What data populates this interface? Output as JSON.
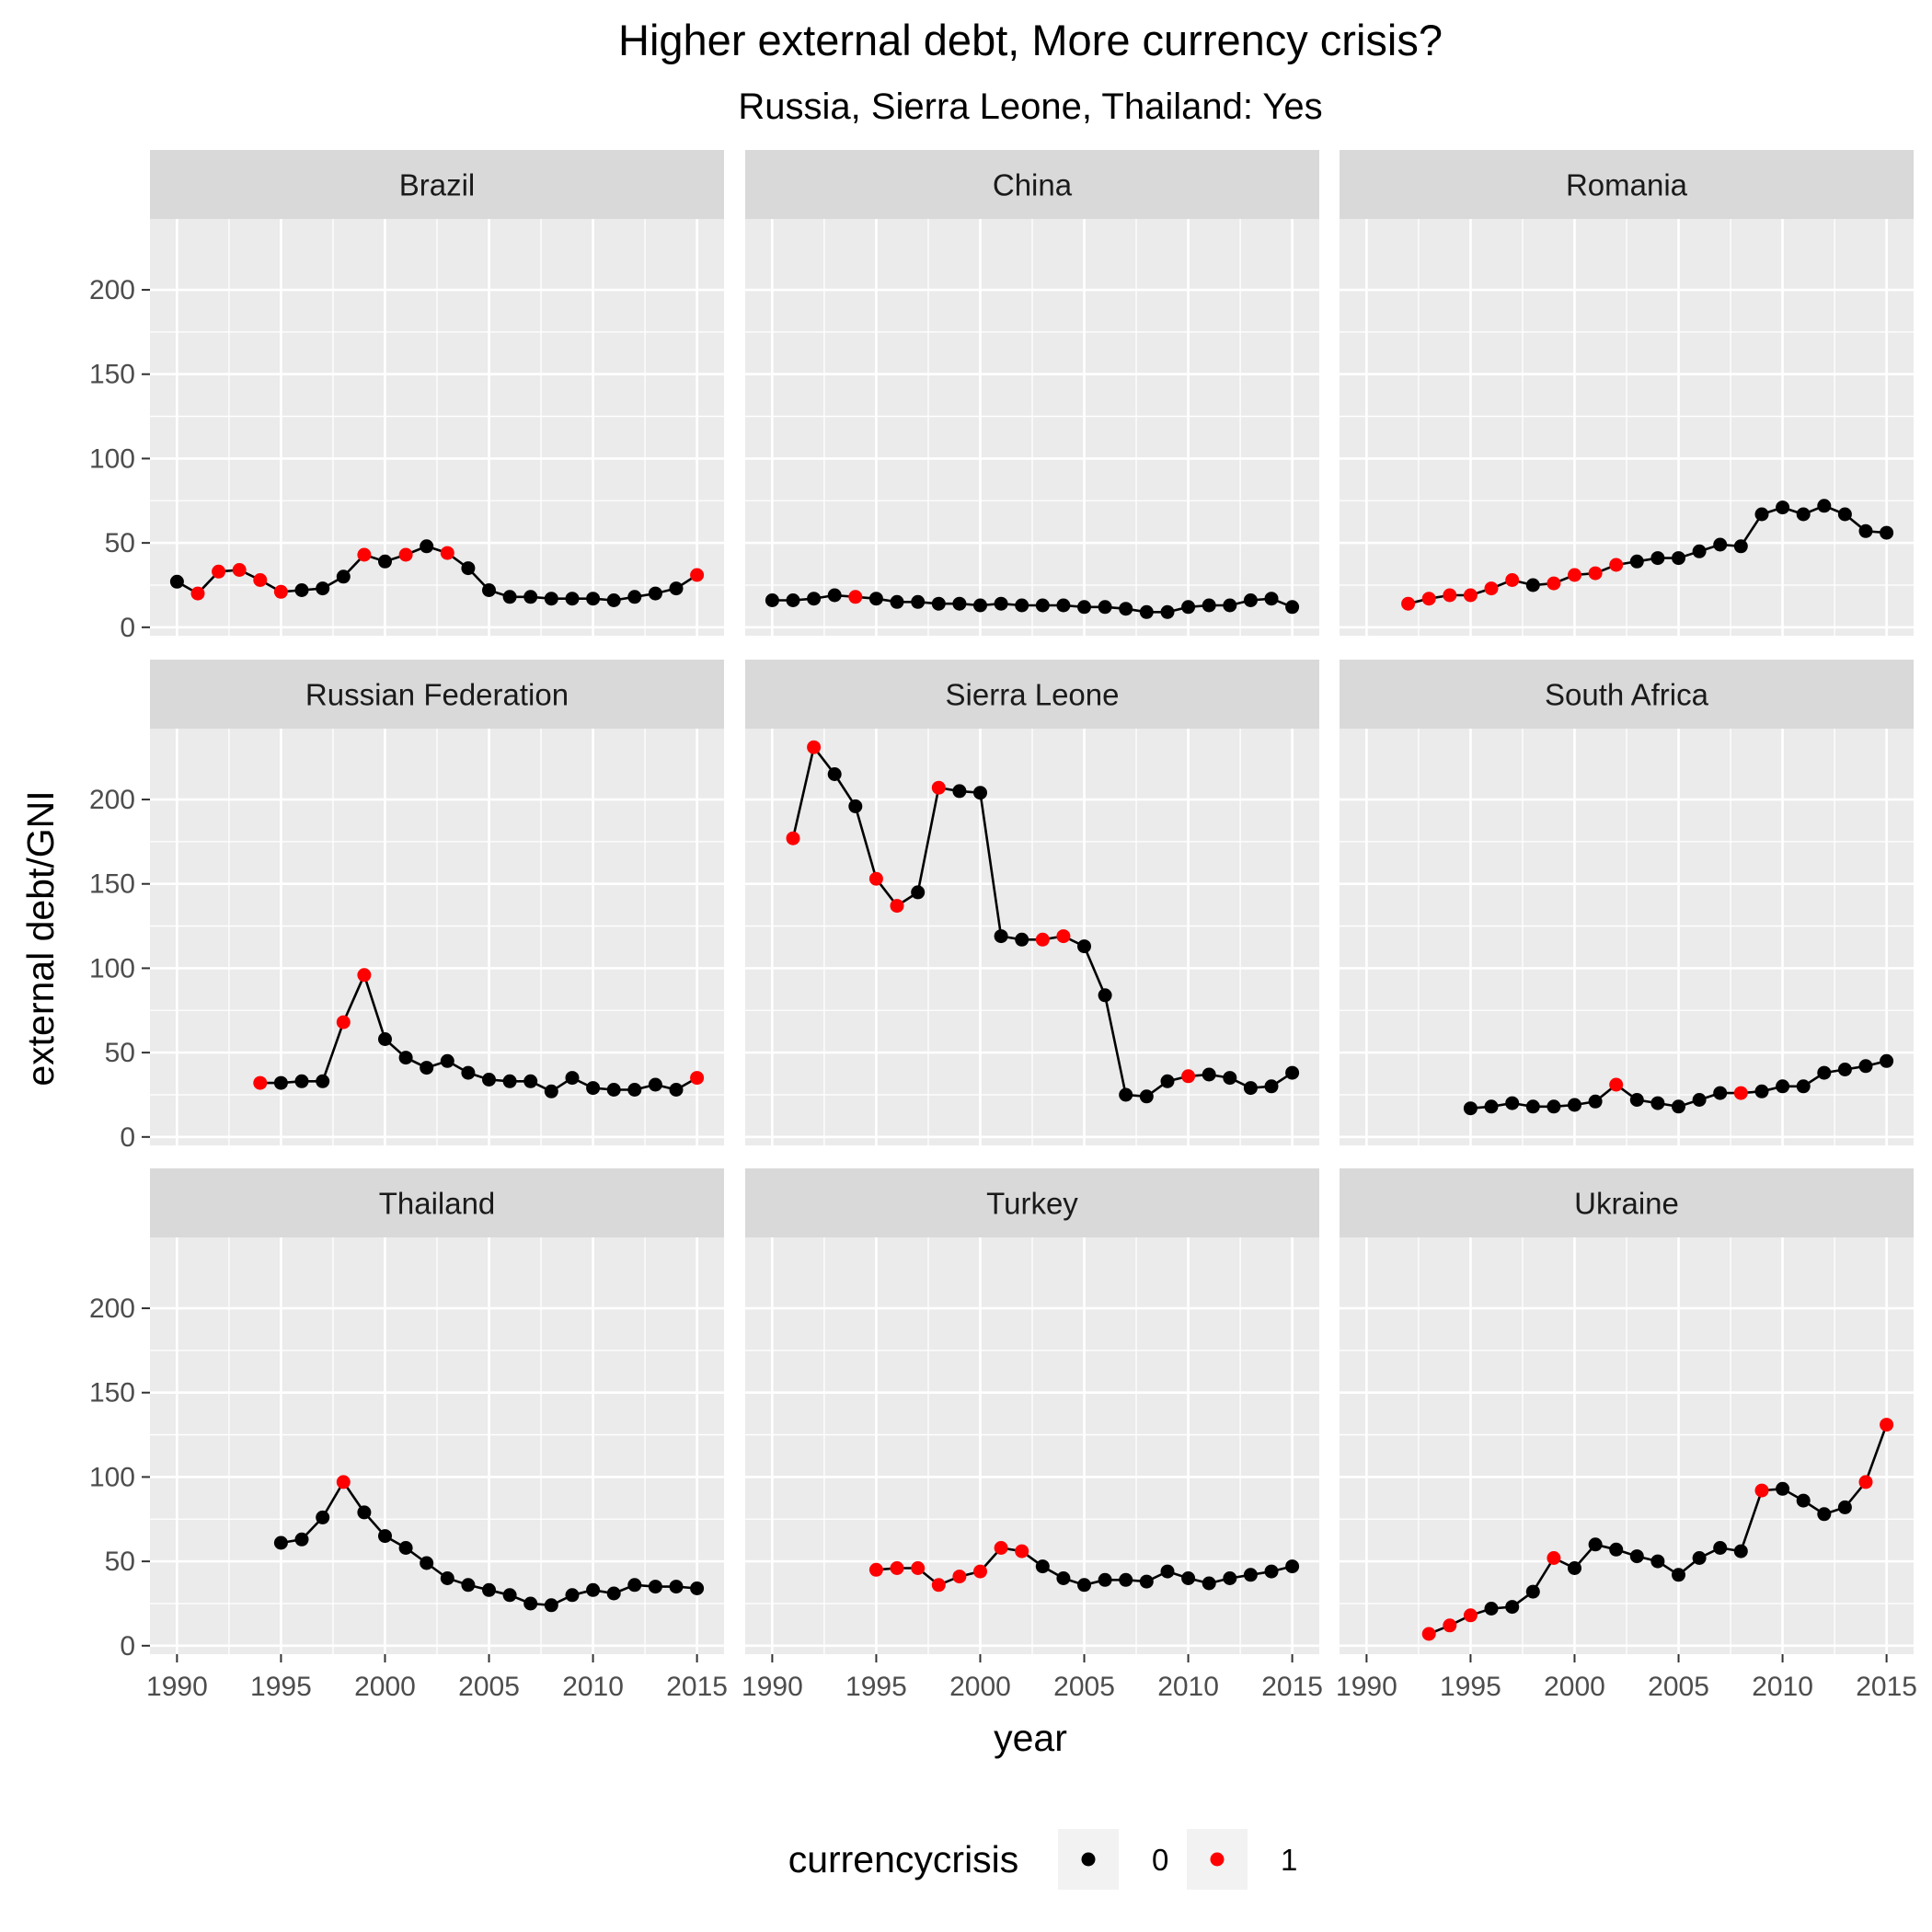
{
  "chart_data": {
    "type": "line",
    "title": "Higher external debt, More currency crisis?",
    "subtitle": "Russia, Sierra Leone, Thailand: Yes",
    "xlabel": "year",
    "ylabel": "external debt/GNI",
    "xlim": [
      1990,
      2015
    ],
    "ylim": [
      0,
      230
    ],
    "x_ticks": [
      1990,
      1995,
      2000,
      2005,
      2010,
      2015
    ],
    "y_ticks": [
      0,
      50,
      100,
      150,
      200
    ],
    "grid": true,
    "legend": {
      "title": "currencycrisis",
      "position": "bottom",
      "entries": [
        {
          "label": "0",
          "color": "#000000"
        },
        {
          "label": "1",
          "color": "#ff0000"
        }
      ]
    },
    "colors": {
      "0": "#000000",
      "1": "#ff0000",
      "panel_bg": "#ebebeb",
      "strip_bg": "#d9d9d9",
      "grid": "#ffffff"
    },
    "panels": [
      {
        "name": "Brazil",
        "start": 1990,
        "y": [
          27,
          20,
          33,
          34,
          28,
          21,
          22,
          23,
          30,
          43,
          39,
          43,
          48,
          44,
          35,
          22,
          18,
          18,
          17,
          17,
          17,
          16,
          18,
          20,
          23,
          31
        ],
        "crisis": [
          0,
          1,
          1,
          1,
          1,
          1,
          0,
          0,
          0,
          1,
          0,
          1,
          0,
          1,
          0,
          0,
          0,
          0,
          0,
          0,
          0,
          0,
          0,
          0,
          0,
          1
        ]
      },
      {
        "name": "China",
        "start": 1990,
        "y": [
          16,
          16,
          17,
          19,
          18,
          17,
          15,
          15,
          14,
          14,
          13,
          14,
          13,
          13,
          13,
          12,
          12,
          11,
          9,
          9,
          12,
          13,
          13,
          16,
          17,
          12
        ],
        "crisis": [
          0,
          0,
          0,
          0,
          1,
          0,
          0,
          0,
          0,
          0,
          0,
          0,
          0,
          0,
          0,
          0,
          0,
          0,
          0,
          0,
          0,
          0,
          0,
          0,
          0,
          0
        ]
      },
      {
        "name": "Romania",
        "start": 1992,
        "y": [
          14,
          17,
          19,
          19,
          23,
          28,
          25,
          26,
          31,
          32,
          37,
          39,
          41,
          41,
          45,
          49,
          48,
          67,
          71,
          67,
          72,
          67,
          57,
          56
        ],
        "crisis": [
          1,
          1,
          1,
          1,
          1,
          1,
          0,
          1,
          1,
          1,
          1,
          0,
          0,
          0,
          0,
          0,
          0,
          0,
          0,
          0,
          0,
          0,
          0,
          0
        ]
      },
      {
        "name": "Russian Federation",
        "start": 1994,
        "y": [
          32,
          32,
          33,
          33,
          68,
          96,
          58,
          47,
          41,
          45,
          38,
          34,
          33,
          33,
          27,
          35,
          29,
          28,
          28,
          31,
          28,
          35
        ],
        "crisis": [
          1,
          0,
          0,
          0,
          1,
          1,
          0,
          0,
          0,
          0,
          0,
          0,
          0,
          0,
          0,
          0,
          0,
          0,
          0,
          0,
          0,
          1
        ]
      },
      {
        "name": "Sierra Leone",
        "start": 1991,
        "y": [
          177,
          231,
          215,
          196,
          153,
          137,
          145,
          207,
          205,
          204,
          119,
          117,
          117,
          119,
          113,
          84,
          25,
          24,
          33,
          36,
          37,
          35,
          29,
          30,
          38
        ],
        "crisis": [
          1,
          1,
          0,
          0,
          1,
          1,
          0,
          1,
          0,
          0,
          0,
          0,
          1,
          1,
          0,
          0,
          0,
          0,
          0,
          1,
          0,
          0,
          0,
          0,
          0
        ]
      },
      {
        "name": "South Africa",
        "start": 1995,
        "y": [
          17,
          18,
          20,
          18,
          18,
          19,
          21,
          31,
          22,
          20,
          18,
          22,
          26,
          26,
          27,
          30,
          30,
          38,
          40,
          42,
          45
        ],
        "crisis": [
          0,
          0,
          0,
          0,
          0,
          0,
          0,
          1,
          0,
          0,
          0,
          0,
          0,
          1,
          0,
          0,
          0,
          0,
          0,
          0,
          0
        ]
      },
      {
        "name": "Thailand",
        "start": 1995,
        "y": [
          61,
          63,
          76,
          97,
          79,
          65,
          58,
          49,
          40,
          36,
          33,
          30,
          25,
          24,
          30,
          33,
          31,
          36,
          35,
          35,
          34
        ],
        "crisis": [
          0,
          0,
          0,
          1,
          0,
          0,
          0,
          0,
          0,
          0,
          0,
          0,
          0,
          0,
          0,
          0,
          0,
          0,
          0,
          0,
          0
        ]
      },
      {
        "name": "Turkey",
        "start": 1995,
        "y": [
          45,
          46,
          46,
          36,
          41,
          44,
          58,
          56,
          47,
          40,
          36,
          39,
          39,
          38,
          44,
          40,
          37,
          40,
          42,
          44,
          47
        ],
        "crisis": [
          1,
          1,
          1,
          1,
          1,
          1,
          1,
          1,
          0,
          0,
          0,
          0,
          0,
          0,
          0,
          0,
          0,
          0,
          0,
          0,
          0
        ]
      },
      {
        "name": "Ukraine",
        "start": 1993,
        "y": [
          7,
          12,
          18,
          22,
          23,
          32,
          52,
          46,
          60,
          57,
          53,
          50,
          42,
          52,
          58,
          56,
          92,
          93,
          86,
          78,
          82,
          97,
          131
        ],
        "crisis": [
          1,
          1,
          1,
          0,
          0,
          0,
          1,
          0,
          0,
          0,
          0,
          0,
          0,
          0,
          0,
          0,
          1,
          0,
          0,
          0,
          0,
          1,
          1
        ]
      }
    ]
  }
}
